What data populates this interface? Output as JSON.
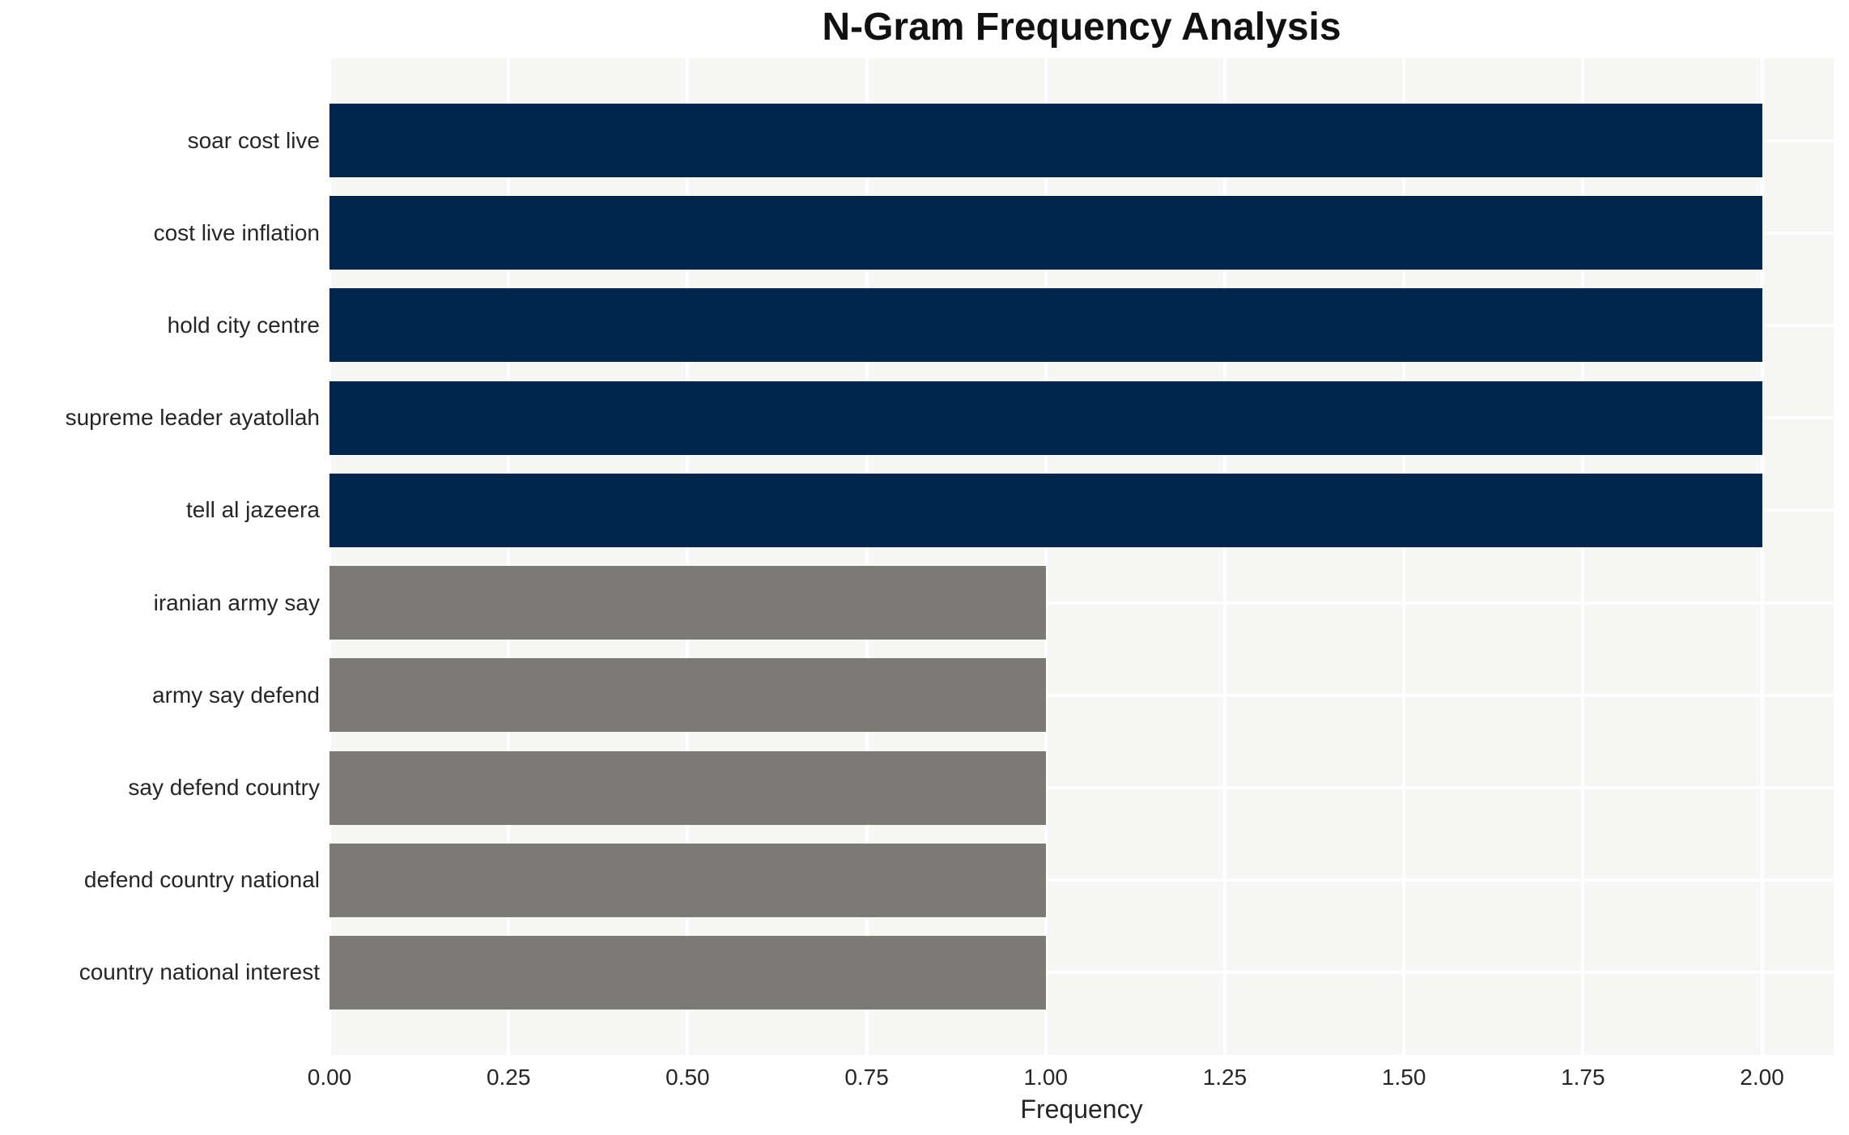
{
  "chart_data": {
    "type": "bar",
    "orientation": "horizontal",
    "title": "N-Gram Frequency Analysis",
    "xlabel": "Frequency",
    "ylabel": "",
    "categories": [
      "soar cost live",
      "cost live inflation",
      "hold city centre",
      "supreme leader ayatollah",
      "tell al jazeera",
      "iranian army say",
      "army say defend",
      "say defend country",
      "defend country national",
      "country national interest"
    ],
    "values": [
      2.0,
      2.0,
      2.0,
      2.0,
      2.0,
      1.0,
      1.0,
      1.0,
      1.0,
      1.0
    ],
    "bar_colors": [
      "#02254c",
      "#02254c",
      "#02254c",
      "#02254c",
      "#02254c",
      "#7b7a76",
      "#7b7a76",
      "#7b7a76",
      "#7b7a76",
      "#7b7a76"
    ],
    "xlim": [
      0,
      2.1
    ],
    "xticks": [
      {
        "value": 0.0,
        "label": "0.00"
      },
      {
        "value": 0.25,
        "label": "0.25"
      },
      {
        "value": 0.5,
        "label": "0.50"
      },
      {
        "value": 0.75,
        "label": "0.75"
      },
      {
        "value": 1.0,
        "label": "1.00"
      },
      {
        "value": 1.25,
        "label": "1.25"
      },
      {
        "value": 1.5,
        "label": "1.50"
      },
      {
        "value": 1.75,
        "label": "1.75"
      },
      {
        "value": 2.0,
        "label": "2.00"
      }
    ],
    "grid": "on",
    "legend": "none",
    "plot_background": "#f6f6f5",
    "grid_color": "#ffffff",
    "text_color": "#262626",
    "title_color": "#111111"
  }
}
